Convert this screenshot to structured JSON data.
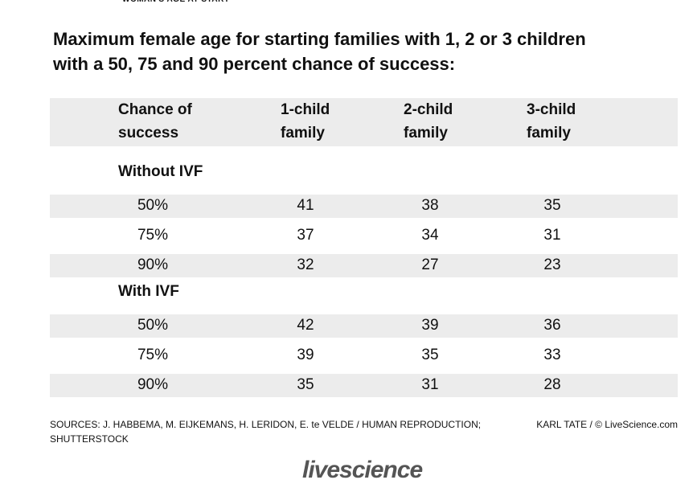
{
  "header": {
    "top_text": "WOMAN'S AGE AT START",
    "title_lines": [
      "Maximum female age for starting families with 1, 2 or 3 children",
      "with a 50, 75 and 90 percent chance of success:"
    ]
  },
  "table": {
    "columns": [
      [
        "Chance of",
        "success"
      ],
      [
        "1-child",
        "family"
      ],
      [
        "2-child",
        "family"
      ],
      [
        "3-child",
        "family"
      ]
    ],
    "sections": [
      {
        "label": "Without IVF",
        "rows": [
          [
            "50%",
            41,
            38,
            35
          ],
          [
            "75%",
            37,
            34,
            31
          ],
          [
            "90%",
            32,
            27,
            23
          ]
        ]
      },
      {
        "label": "With IVF",
        "rows": [
          [
            "50%",
            42,
            39,
            36
          ],
          [
            "75%",
            39,
            35,
            33
          ],
          [
            "90%",
            35,
            31,
            28
          ]
        ]
      }
    ]
  },
  "footer": {
    "sources": [
      "SOURCES:  J. HABBEMA, M. EIJKEMANS, H. LERIDON, E. te VELDE / HUMAN REPRODUCTION;",
      "SHUTTERSTOCK"
    ],
    "credit": "KARL TATE / © LiveScience.com",
    "logo": "livescience"
  }
}
